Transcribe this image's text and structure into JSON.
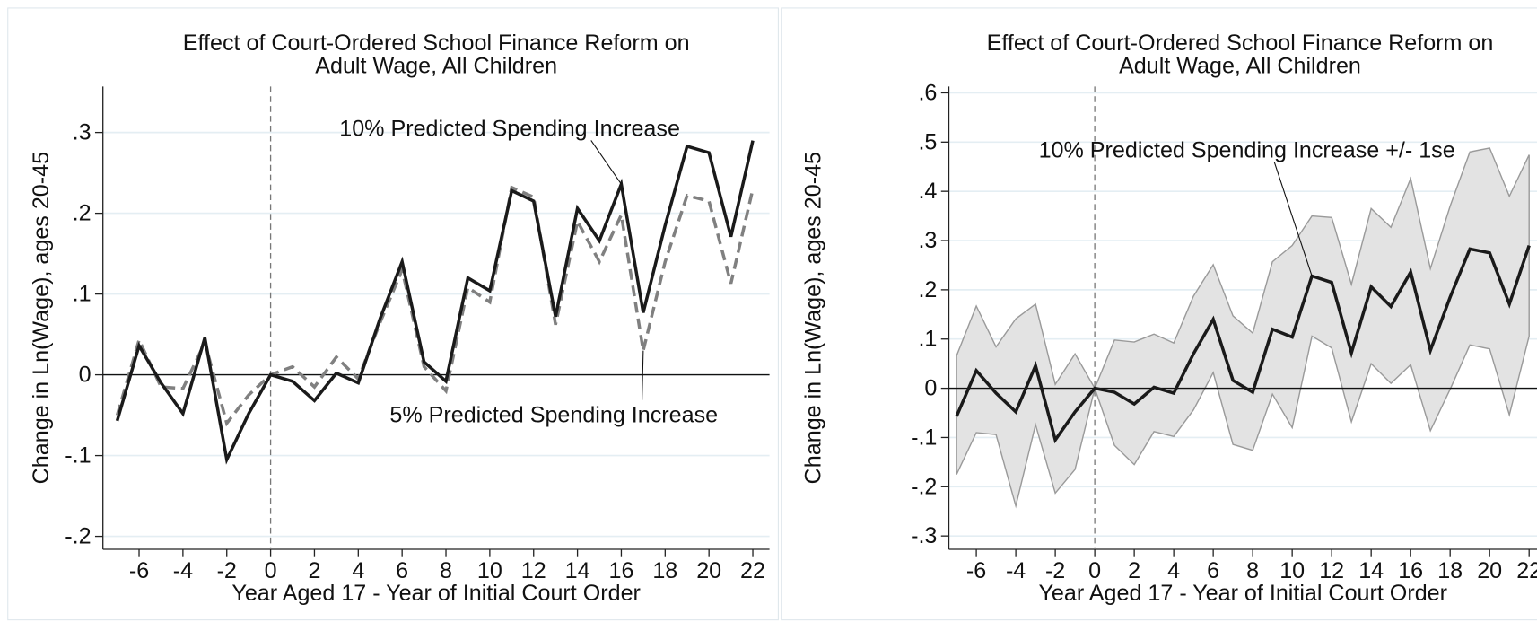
{
  "chart_data": [
    {
      "type": "line",
      "title": [
        "Effect of Court-Ordered School Finance Reform on",
        "Adult Wage, All Children"
      ],
      "x_label": "Year Aged 17 - Year of Initial Court Order",
      "y_label": "Change in Ln(Wage), ages 20-45",
      "x": [
        -7,
        -6,
        -5,
        -4,
        -3,
        -2,
        -1,
        0,
        1,
        2,
        3,
        4,
        5,
        6,
        7,
        8,
        9,
        10,
        11,
        12,
        13,
        14,
        15,
        16,
        17,
        18,
        19,
        20,
        21,
        22
      ],
      "series": [
        {
          "name": "10% Predicted Spending Increase",
          "color": "#1a1a1a",
          "dash": false,
          "values": [
            -0.057,
            0.036,
            -0.01,
            -0.048,
            0.046,
            -0.105,
            -0.048,
            0,
            -0.008,
            -0.032,
            0.002,
            -0.01,
            0.07,
            0.14,
            0.016,
            -0.008,
            0.12,
            0.104,
            0.228,
            0.215,
            0.072,
            0.206,
            0.166,
            0.236,
            0.077,
            0.185,
            0.283,
            0.275,
            0.171,
            0.29
          ]
        },
        {
          "name": "5% Predicted Spending Increase",
          "color": "#808080",
          "dash": true,
          "values": [
            -0.05,
            0.043,
            -0.015,
            -0.017,
            0.04,
            -0.06,
            -0.025,
            0,
            0.01,
            -0.015,
            0.022,
            -0.005,
            0.065,
            0.13,
            0.01,
            -0.02,
            0.108,
            0.09,
            0.232,
            0.22,
            0.062,
            0.19,
            0.14,
            0.198,
            0.03,
            0.14,
            0.222,
            0.215,
            0.113,
            0.23
          ]
        }
      ],
      "xlim": [
        -7.65,
        22.76
      ],
      "xticks": [
        -6,
        -4,
        -2,
        0,
        2,
        4,
        6,
        8,
        10,
        12,
        14,
        16,
        18,
        20,
        22
      ],
      "ylim": [
        -0.216,
        0.357
      ],
      "yticks": [
        {
          "value": -0.2,
          "label": "-.2"
        },
        {
          "value": -0.1,
          "label": "-.1"
        },
        0,
        {
          "value": 0.1,
          "label": ".1"
        },
        {
          "value": 0.2,
          "label": ".2"
        },
        {
          "value": 0.3,
          "label": ".3"
        }
      ],
      "grid": true,
      "hline": 0,
      "vline": 0
    },
    {
      "type": "line",
      "title": [
        "Effect of Court-Ordered School Finance Reform on",
        "Adult Wage, All Children"
      ],
      "x_label": "Year Aged 17 - Year of Initial Court Order",
      "y_label": "Change in Ln(Wage), ages 20-45",
      "x": [
        -7,
        -6,
        -5,
        -4,
        -3,
        -2,
        -1,
        0,
        1,
        2,
        3,
        4,
        5,
        6,
        7,
        8,
        9,
        10,
        11,
        12,
        13,
        14,
        15,
        16,
        17,
        18,
        19,
        20,
        21,
        22
      ],
      "series": [
        {
          "name": "10% Predicted Spending Increase +/- 1se",
          "color": "#1a1a1a",
          "band_color": "#e3e3e3",
          "dash": false,
          "values": [
            -0.057,
            0.036,
            -0.01,
            -0.048,
            0.046,
            -0.105,
            -0.048,
            0,
            -0.008,
            -0.032,
            0.002,
            -0.01,
            0.07,
            0.14,
            0.016,
            -0.008,
            0.12,
            0.104,
            0.228,
            0.215,
            0.072,
            0.206,
            0.166,
            0.236,
            0.077,
            0.185,
            0.283,
            0.275,
            0.171,
            0.29
          ],
          "upper": [
            0.066,
            0.167,
            0.084,
            0.141,
            0.171,
            0.008,
            0.07,
            0,
            0.098,
            0.094,
            0.11,
            0.092,
            0.187,
            0.251,
            0.147,
            0.112,
            0.257,
            0.29,
            0.35,
            0.347,
            0.211,
            0.365,
            0.327,
            0.426,
            0.243,
            0.37,
            0.48,
            0.488,
            0.39,
            0.474
          ],
          "lower": [
            -0.175,
            -0.09,
            -0.094,
            -0.239,
            -0.074,
            -0.213,
            -0.165,
            0,
            -0.116,
            -0.155,
            -0.088,
            -0.098,
            -0.044,
            0.032,
            -0.114,
            -0.126,
            -0.012,
            -0.08,
            0.106,
            0.082,
            -0.068,
            0.05,
            0.01,
            0.048,
            -0.086,
            -0.002,
            0.088,
            0.08,
            -0.054,
            0.106
          ]
        }
      ],
      "xlim": [
        -7.39,
        22.4
      ],
      "xticks": [
        -6,
        -4,
        -2,
        0,
        2,
        4,
        6,
        8,
        10,
        12,
        14,
        16,
        18,
        20,
        22
      ],
      "ylim": [
        -0.327,
        0.613
      ],
      "yticks": [
        {
          "value": -0.3,
          "label": "-.3"
        },
        {
          "value": -0.2,
          "label": "-.2"
        },
        {
          "value": -0.1,
          "label": "-.1"
        },
        0,
        {
          "value": 0.1,
          "label": ".1"
        },
        {
          "value": 0.2,
          "label": ".2"
        },
        {
          "value": 0.3,
          "label": ".3"
        },
        {
          "value": 0.4,
          "label": ".4"
        },
        {
          "value": 0.5,
          "label": ".5"
        },
        {
          "value": 0.6,
          "label": ".6"
        }
      ],
      "grid": true,
      "hline": 0,
      "vline": 0
    }
  ]
}
